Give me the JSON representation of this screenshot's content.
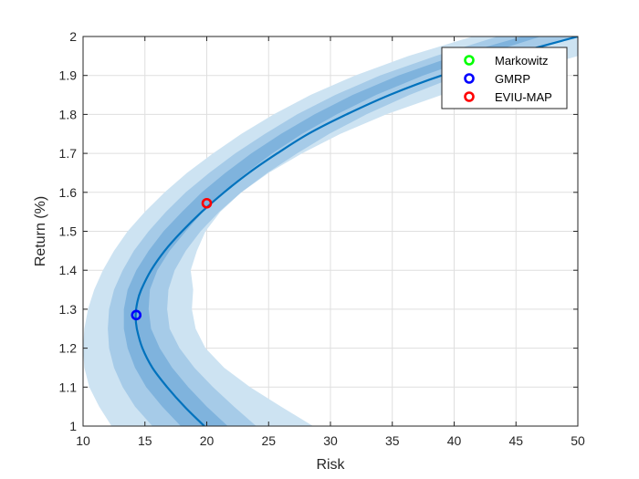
{
  "toolbar": {
    "icons": [
      "brush-edit-icon",
      "data-tips-icon",
      "legend-toggle-icon",
      "pan-icon",
      "zoom-in-icon",
      "zoom-out-icon",
      "home-icon"
    ]
  },
  "chart_data": {
    "type": "line",
    "title": "",
    "xlabel": "Risk",
    "ylabel": "Return (%)",
    "xlim": [
      10,
      50
    ],
    "ylim": [
      1,
      2
    ],
    "xticks": [
      10,
      15,
      20,
      25,
      30,
      35,
      40,
      45,
      50
    ],
    "yticks": [
      1,
      1.1,
      1.2,
      1.3,
      1.4,
      1.5,
      1.6,
      1.7,
      1.8,
      1.9,
      2
    ],
    "grid": true,
    "legend_location": "top-right",
    "frontier": {
      "y": [
        1.0,
        1.05,
        1.1,
        1.15,
        1.2,
        1.25,
        1.285,
        1.32,
        1.35,
        1.4,
        1.45,
        1.5,
        1.55,
        1.6,
        1.65,
        1.7,
        1.75,
        1.8,
        1.85,
        1.9,
        1.95,
        2.0
      ],
      "x": [
        19.8,
        18.2,
        16.8,
        15.6,
        14.8,
        14.35,
        14.25,
        14.4,
        14.7,
        15.5,
        16.6,
        18.0,
        19.6,
        21.4,
        23.4,
        25.7,
        28.2,
        31.3,
        34.8,
        39.0,
        44.2,
        50.0
      ]
    },
    "outer_band": {
      "y": [
        1.0,
        1.05,
        1.1,
        1.15,
        1.2,
        1.25,
        1.3,
        1.35,
        1.4,
        1.45,
        1.5,
        1.55,
        1.6,
        1.65,
        1.7,
        1.75,
        1.8,
        1.85,
        1.9,
        1.95,
        2.0
      ],
      "x_left": [
        12.3,
        11.3,
        10.5,
        10.1,
        10.0,
        10.1,
        10.4,
        10.9,
        11.6,
        12.5,
        13.6,
        15.0,
        16.6,
        18.4,
        20.5,
        22.8,
        25.4,
        28.4,
        32.0,
        36.3,
        41.5
      ],
      "x_right": [
        28.6,
        26.0,
        23.5,
        21.4,
        19.9,
        19.1,
        18.8,
        18.9,
        18.7,
        19.2,
        19.9,
        21.1,
        22.8,
        25.0,
        27.7,
        30.8,
        34.5,
        39.0,
        44.5,
        50.0,
        50.0
      ]
    },
    "middle_band": {
      "y": [
        1.0,
        1.05,
        1.1,
        1.15,
        1.2,
        1.25,
        1.3,
        1.35,
        1.4,
        1.45,
        1.5,
        1.55,
        1.6,
        1.65,
        1.7,
        1.75,
        1.8,
        1.85,
        1.9,
        1.95,
        2.0
      ],
      "x_left": [
        15.6,
        14.2,
        13.2,
        12.5,
        12.1,
        12.0,
        12.1,
        12.5,
        13.2,
        14.1,
        15.3,
        16.7,
        18.3,
        20.2,
        22.3,
        24.7,
        27.3,
        30.4,
        34.0,
        38.5,
        43.5
      ],
      "x_right": [
        24.0,
        22.2,
        20.5,
        19.0,
        17.8,
        17.0,
        16.8,
        16.9,
        17.4,
        18.3,
        19.5,
        21.0,
        22.8,
        24.9,
        27.3,
        29.9,
        32.9,
        36.4,
        40.4,
        45.0,
        50.0
      ]
    },
    "inner_band": {
      "y": [
        1.0,
        1.05,
        1.1,
        1.15,
        1.2,
        1.25,
        1.3,
        1.35,
        1.4,
        1.45,
        1.5,
        1.55,
        1.6,
        1.65,
        1.7,
        1.75,
        1.8,
        1.85,
        1.9,
        1.95,
        2.0
      ],
      "x_left": [
        17.9,
        16.4,
        15.1,
        14.2,
        13.6,
        13.3,
        13.3,
        13.6,
        14.3,
        15.3,
        16.5,
        18.0,
        19.6,
        21.5,
        23.6,
        26.0,
        28.7,
        31.8,
        35.5,
        40.0,
        45.5
      ],
      "x_right": [
        21.7,
        20.0,
        18.5,
        17.2,
        16.2,
        15.5,
        15.3,
        15.4,
        16.0,
        17.0,
        18.3,
        19.7,
        21.3,
        23.2,
        25.3,
        27.7,
        30.5,
        33.7,
        37.5,
        42.0,
        47.0
      ]
    },
    "markers": [
      {
        "name": "Markowitz",
        "x": 50.0,
        "y": 2.0,
        "color": "#00ff00",
        "visible": false
      },
      {
        "name": "GMRP",
        "x": 14.3,
        "y": 1.285,
        "color": "#0000ff",
        "visible": true
      },
      {
        "name": "EVIU-MAP",
        "x": 20.0,
        "y": 1.572,
        "color": "#ff0000",
        "visible": true
      }
    ],
    "legend": [
      "Markowitz",
      "GMRP",
      "EVIU-MAP"
    ],
    "colors": {
      "line": "#0072bd",
      "band_outer": "#cde3f2",
      "band_middle": "#a6cbe8",
      "band_inner": "#7fb3dd",
      "grid": "#dfdfdf",
      "axis": "#262626"
    }
  }
}
